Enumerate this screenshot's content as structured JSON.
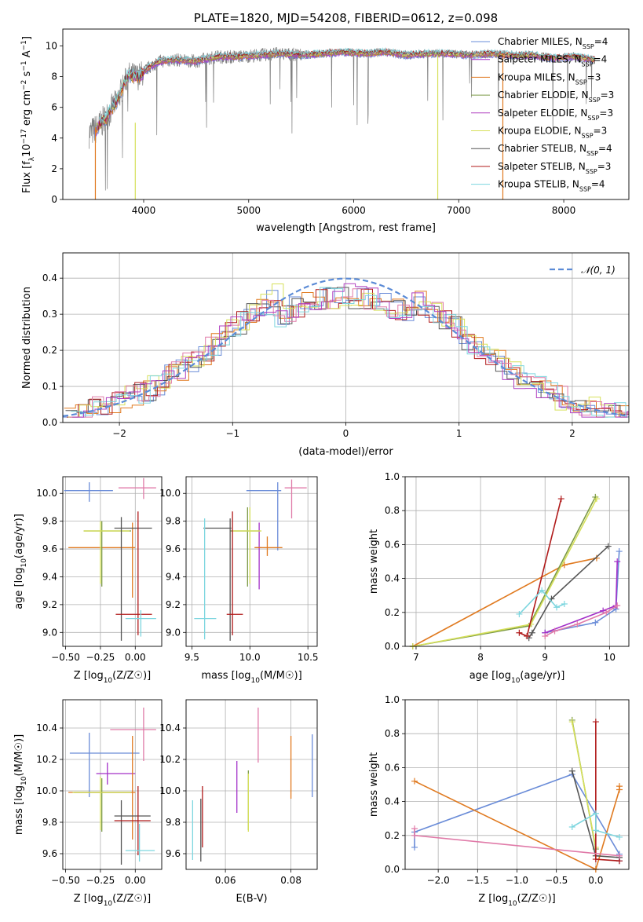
{
  "figure": {
    "title": "PLATE=1820, MJD=54208, FIBERID=0612, z=0.098"
  },
  "colors": {
    "Chabrier MILES": "#6a8cd8",
    "Salpeter MILES": "#a330c8",
    "Kroupa MILES": "#e07a20",
    "Chabrier ELODIE": "#7c9a46",
    "Salpeter ELODIE": "#b040c0",
    "Kroupa ELODIE": "#d6e05a",
    "Chabrier STELIB": "#555555",
    "Salpeter STELIB": "#b01a1a",
    "Kroupa STELIB": "#7dd6df",
    "data": "#808080",
    "normal": "#5b8bd6",
    "pink": "#e07aa8"
  },
  "chart_data": [
    {
      "id": "spectrum",
      "type": "line",
      "title": "PLATE=1820, MJD=54208, FIBERID=0612, z=0.098",
      "xlabel": "wavelength [Angstrom, rest frame]",
      "ylabel": "Flux [f_λ 10^-17 erg cm^-2 s^-1 A^-1]",
      "xlim": [
        3230,
        8620
      ],
      "ylim": [
        0,
        11.1
      ],
      "xticks": [
        4000,
        5000,
        6000,
        7000,
        8000
      ],
      "yticks": [
        0,
        2,
        4,
        6,
        8,
        10
      ],
      "grid": false,
      "legend": "right",
      "legend_entries": [
        {
          "name": "Chabrier MILES",
          "label": "Chabrier MILES, N",
          "sub": "SSP",
          "tail": "=4"
        },
        {
          "name": "Salpeter MILES",
          "label": "Salpeter MILES, N",
          "sub": "SSP",
          "tail": "=4"
        },
        {
          "name": "Kroupa MILES",
          "label": "Kroupa MILES, N",
          "sub": "SSP",
          "tail": "=3"
        },
        {
          "name": "Chabrier ELODIE",
          "label": "Chabrier ELODIE, N",
          "sub": "SSP",
          "tail": "=3"
        },
        {
          "name": "Salpeter ELODIE",
          "label": "Salpeter ELODIE, N",
          "sub": "SSP",
          "tail": "=3"
        },
        {
          "name": "Kroupa ELODIE",
          "label": "Kroupa ELODIE, N",
          "sub": "SSP",
          "tail": "=3"
        },
        {
          "name": "Chabrier STELIB",
          "label": "Chabrier STELIB, N",
          "sub": "SSP",
          "tail": "=4"
        },
        {
          "name": "Salpeter STELIB",
          "label": "Salpeter STELIB, N",
          "sub": "SSP",
          "tail": "=3"
        },
        {
          "name": "Kroupa STELIB",
          "label": "Kroupa STELIB, N",
          "sub": "SSP",
          "tail": "=4"
        }
      ],
      "continuum": {
        "x": [
          3480,
          3550,
          3650,
          3750,
          3850,
          3950,
          4050,
          4150,
          4300,
          4500,
          4700,
          4900,
          5100,
          5300,
          5500,
          5700,
          5900,
          6100,
          6300,
          6500,
          6700,
          6900,
          7100,
          7300,
          7500,
          7700,
          7900,
          8100,
          8300
        ],
        "y": [
          4.3,
          4.6,
          5.4,
          6.5,
          8.1,
          8.0,
          8.6,
          9.0,
          9.1,
          9.0,
          9.3,
          9.3,
          9.4,
          9.5,
          9.4,
          9.5,
          9.6,
          9.5,
          9.6,
          9.4,
          9.5,
          9.5,
          9.4,
          9.5,
          9.4,
          9.4,
          9.2,
          9.3,
          9.1
        ]
      }
    },
    {
      "id": "residuals",
      "type": "histogram",
      "xlabel": "(data-model)/error",
      "ylabel": "Normed distribution",
      "xlim": [
        -2.5,
        2.5
      ],
      "ylim": [
        0,
        0.47
      ],
      "xticks": [
        -2,
        -1,
        0,
        1,
        2
      ],
      "yticks": [
        0.0,
        0.1,
        0.2,
        0.3,
        0.4
      ],
      "grid": true,
      "legend": "top-right",
      "legend_entries": [
        {
          "name": "normal",
          "label": "𝒩(0, 1)"
        }
      ],
      "normal_curve": {
        "mu": 0,
        "sigma": 1
      }
    },
    {
      "id": "age-vs-Z",
      "type": "errorbar",
      "xlabel_main": "Z [log",
      "xlabel_sub": "10",
      "xlabel_tail": "(Z/Z☉)]",
      "ylabel_main": "age  [log",
      "ylabel_sub": "10",
      "ylabel_tail": "(age/yr)]",
      "xlim": [
        -0.52,
        0.19
      ],
      "ylim": [
        8.9,
        10.12
      ],
      "xticks": [
        -0.5,
        -0.25,
        0.0
      ],
      "xticklabels": [
        "−0.50",
        "−0.25",
        "0.00"
      ],
      "yticks": [
        9.0,
        9.2,
        9.4,
        9.6,
        9.8,
        10.0
      ],
      "grid": true,
      "points": [
        {
          "series": "Chabrier MILES",
          "x": -0.33,
          "y": 10.02,
          "xerr": [
            0.18,
            0.17
          ],
          "yerr": [
            0.08,
            0.06
          ]
        },
        {
          "series": "Kroupa MILES",
          "x": -0.02,
          "y": 9.61,
          "xerr": [
            0.46,
            0.02
          ],
          "yerr": [
            0.36,
            0.18
          ]
        },
        {
          "series": "Chabrier ELODIE",
          "x": -0.24,
          "y": 9.73,
          "xerr": [
            0.13,
            0.21
          ],
          "yerr": [
            0.4,
            0.07
          ]
        },
        {
          "series": "Kroupa ELODIE",
          "x": -0.25,
          "y": 9.73,
          "xerr": [
            0.12,
            0.21
          ],
          "yerr": [
            0.38,
            0.07
          ]
        },
        {
          "series": "Chabrier STELIB",
          "x": -0.1,
          "y": 9.75,
          "xerr": [
            0.05,
            0.22
          ],
          "yerr": [
            0.81,
            0.08
          ]
        },
        {
          "series": "Salpeter STELIB",
          "x": 0.02,
          "y": 9.13,
          "xerr": [
            0.16,
            0.1
          ],
          "yerr": [
            0.15,
            0.74
          ]
        },
        {
          "series": "Kroupa STELIB",
          "x": 0.04,
          "y": 9.1,
          "xerr": [
            0.11,
            0.11
          ],
          "yerr": [
            0.13,
            0.06
          ]
        },
        {
          "series": "pink",
          "x": 0.06,
          "y": 10.04,
          "xerr": [
            0.18,
            0.09
          ],
          "yerr": [
            0.08,
            0.07
          ]
        }
      ]
    },
    {
      "id": "age-vs-mass",
      "type": "errorbar",
      "xlabel_main": "mass [log",
      "xlabel_sub": "10",
      "xlabel_tail": "(M/M☉)]",
      "xlim": [
        9.45,
        10.58
      ],
      "ylim": [
        8.9,
        10.12
      ],
      "xticks": [
        9.5,
        10.0,
        10.5
      ],
      "yticks": [
        9.0,
        9.2,
        9.4,
        9.6,
        9.8,
        10.0
      ],
      "grid": true,
      "points": [
        {
          "series": "Chabrier MILES",
          "x": 10.24,
          "y": 10.02,
          "xerr": [
            0.27,
            0.03
          ],
          "yerr": [
            0.43,
            0.06
          ]
        },
        {
          "series": "pink",
          "x": 10.36,
          "y": 10.04,
          "xerr": [
            0.06,
            0.13
          ],
          "yerr": [
            0.22,
            0.06
          ]
        },
        {
          "series": "Salpeter MILES",
          "x": 10.08,
          "y": 9.61,
          "xerr": [
            0.03,
            0.02
          ],
          "yerr": [
            0.3,
            0.18
          ]
        },
        {
          "series": "Kroupa MILES",
          "x": 10.15,
          "y": 9.61,
          "xerr": [
            0.11,
            0.13
          ],
          "yerr": [
            0.06,
            0.08
          ]
        },
        {
          "series": "Chabrier ELODIE",
          "x": 9.98,
          "y": 9.73,
          "xerr": [
            0.15,
            0.1
          ],
          "yerr": [
            0.4,
            0.17
          ]
        },
        {
          "series": "Kroupa ELODIE",
          "x": 10.0,
          "y": 9.73,
          "xerr": [
            0.15,
            0.1
          ],
          "yerr": [
            0.38,
            0.17
          ]
        },
        {
          "series": "Chabrier STELIB",
          "x": 9.83,
          "y": 9.75,
          "xerr": [
            0.23,
            0.01
          ],
          "yerr": [
            0.81,
            0.07
          ]
        },
        {
          "series": "Salpeter STELIB",
          "x": 9.85,
          "y": 9.13,
          "xerr": [
            0.05,
            0.09
          ],
          "yerr": [
            0.15,
            0.74
          ]
        },
        {
          "series": "Kroupa STELIB",
          "x": 9.61,
          "y": 9.1,
          "xerr": [
            0.09,
            0.1
          ],
          "yerr": [
            0.15,
            0.72
          ]
        }
      ]
    },
    {
      "id": "weight-vs-age",
      "type": "line",
      "xlabel_main": "age  [log",
      "xlabel_sub": "10",
      "xlabel_tail": "(age/yr)]",
      "ylabel": "mass weight",
      "xlim": [
        6.83,
        10.3
      ],
      "ylim": [
        0,
        1.0
      ],
      "xticks": [
        7,
        8,
        9,
        10
      ],
      "yticks": [
        0.0,
        0.2,
        0.4,
        0.6,
        0.8,
        1.0
      ],
      "grid": true,
      "series": [
        {
          "name": "Chabrier MILES",
          "x": [
            9.0,
            9.78,
            10.1,
            10.15
          ],
          "y": [
            0.08,
            0.14,
            0.22,
            0.56
          ]
        },
        {
          "name": "Salpeter MILES",
          "x": [
            9.0,
            9.9,
            10.1,
            10.12
          ],
          "y": [
            0.08,
            0.21,
            0.24,
            0.5
          ]
        },
        {
          "name": "Kroupa MILES",
          "x": [
            6.95,
            9.3,
            9.8
          ],
          "y": [
            0.0,
            0.48,
            0.52
          ]
        },
        {
          "name": "Chabrier ELODIE",
          "x": [
            6.95,
            8.75,
            9.78
          ],
          "y": [
            0.0,
            0.12,
            0.88
          ]
        },
        {
          "name": "Kroupa ELODIE",
          "x": [
            6.95,
            8.78,
            9.8
          ],
          "y": [
            0.0,
            0.13,
            0.87
          ]
        },
        {
          "name": "Chabrier STELIB",
          "x": [
            8.75,
            8.8,
            9.1,
            9.98
          ],
          "y": [
            0.05,
            0.08,
            0.28,
            0.59
          ]
        },
        {
          "name": "Salpeter STELIB",
          "x": [
            8.6,
            8.72,
            9.25
          ],
          "y": [
            0.08,
            0.06,
            0.87
          ]
        },
        {
          "name": "Kroupa STELIB",
          "x": [
            8.6,
            8.95,
            9.18,
            9.3
          ],
          "y": [
            0.19,
            0.33,
            0.23,
            0.25
          ]
        },
        {
          "name": "pink",
          "x": [
            9.0,
            9.15,
            9.5,
            9.95,
            10.12
          ],
          "y": [
            0.06,
            0.09,
            0.13,
            0.2,
            0.24
          ]
        }
      ]
    },
    {
      "id": "mass-vs-Z",
      "type": "errorbar",
      "xlabel_main": "Z [log",
      "xlabel_sub": "10",
      "xlabel_tail": "(Z/Z☉)]",
      "ylabel_main": "mass [log",
      "ylabel_sub": "10",
      "ylabel_tail": "(M/M☉)]",
      "xlim": [
        -0.52,
        0.19
      ],
      "ylim": [
        9.5,
        10.58
      ],
      "xticks": [
        -0.5,
        -0.25,
        0.0
      ],
      "xticklabels": [
        "−0.50",
        "−0.25",
        "0.00"
      ],
      "yticks": [
        9.6,
        9.8,
        10.0,
        10.2,
        10.4
      ],
      "grid": true,
      "points": [
        {
          "series": "Chabrier MILES",
          "x": -0.33,
          "y": 10.24,
          "xerr": [
            0.14,
            0.36
          ],
          "yerr": [
            0.28,
            0.13
          ]
        },
        {
          "series": "pink",
          "x": 0.06,
          "y": 10.39,
          "xerr": [
            0.24,
            0.09
          ],
          "yerr": [
            0.2,
            0.14
          ]
        },
        {
          "series": "Salpeter MILES",
          "x": -0.2,
          "y": 10.11,
          "xerr": [
            0.08,
            0.2
          ],
          "yerr": [
            0.07,
            0.07
          ]
        },
        {
          "series": "Kroupa MILES",
          "x": -0.02,
          "y": 9.99,
          "xerr": [
            0.46,
            0.02
          ],
          "yerr": [
            0.3,
            0.36
          ]
        },
        {
          "series": "Chabrier ELODIE",
          "x": -0.24,
          "y": 9.99,
          "xerr": [
            0.2,
            0.21
          ],
          "yerr": [
            0.25,
            0.09
          ]
        },
        {
          "series": "Kroupa ELODIE",
          "x": -0.25,
          "y": 9.99,
          "xerr": [
            0.2,
            0.22
          ],
          "yerr": [
            0.24,
            0.1
          ]
        },
        {
          "series": "Chabrier STELIB",
          "x": -0.1,
          "y": 9.84,
          "xerr": [
            0.05,
            0.21
          ],
          "yerr": [
            0.31,
            0.1
          ]
        },
        {
          "series": "Salpeter STELIB",
          "x": 0.02,
          "y": 9.81,
          "xerr": [
            0.17,
            0.09
          ],
          "yerr": [
            0.22,
            0.22
          ]
        },
        {
          "series": "Kroupa STELIB",
          "x": 0.03,
          "y": 9.62,
          "xerr": [
            0.1,
            0.11
          ],
          "yerr": [
            0.07,
            0.17
          ]
        }
      ]
    },
    {
      "id": "mass-vs-ebv",
      "type": "errorbar",
      "xlabel": "E(B-V)",
      "xlim": [
        0.048,
        0.088
      ],
      "ylim": [
        9.5,
        10.58
      ],
      "xticks": [
        0.06,
        0.08
      ],
      "yticks": [
        9.6,
        9.8,
        10.0,
        10.2,
        10.4
      ],
      "grid": true,
      "points": [
        {
          "series": "Chabrier MILES",
          "x": 0.0865,
          "y": 10.16,
          "xerr": [
            0,
            0
          ],
          "yerr": [
            0.2,
            0.2
          ]
        },
        {
          "series": "Kroupa MILES",
          "x": 0.08,
          "y": 10.15,
          "xerr": [
            0,
            0
          ],
          "yerr": [
            0.2,
            0.2
          ]
        },
        {
          "series": "pink",
          "x": 0.07,
          "y": 10.35,
          "xerr": [
            0,
            0
          ],
          "yerr": [
            0.17,
            0.18
          ]
        },
        {
          "series": "Chabrier ELODIE",
          "x": 0.067,
          "y": 9.93,
          "xerr": [
            0,
            0
          ],
          "yerr": [
            0.18,
            0.2
          ]
        },
        {
          "series": "Kroupa ELODIE",
          "x": 0.067,
          "y": 9.93,
          "xerr": [
            0,
            0
          ],
          "yerr": [
            0.19,
            0.18
          ]
        },
        {
          "series": "Salpeter MILES",
          "x": 0.0635,
          "y": 10.0,
          "xerr": [
            0,
            0
          ],
          "yerr": [
            0.14,
            0.19
          ]
        },
        {
          "series": "Chabrier STELIB",
          "x": 0.0525,
          "y": 9.75,
          "xerr": [
            0,
            0
          ],
          "yerr": [
            0.2,
            0.2
          ]
        },
        {
          "series": "Salpeter STELIB",
          "x": 0.053,
          "y": 9.84,
          "xerr": [
            0,
            0
          ],
          "yerr": [
            0.2,
            0.19
          ]
        },
        {
          "series": "Kroupa STELIB",
          "x": 0.05,
          "y": 9.76,
          "xerr": [
            0,
            0
          ],
          "yerr": [
            0.2,
            0.18
          ]
        }
      ]
    },
    {
      "id": "weight-vs-Z",
      "type": "line",
      "xlabel_main": "Z [log",
      "xlabel_sub": "10",
      "xlabel_tail": "(Z/Z☉)]",
      "ylabel": "mass weight",
      "xlim": [
        -2.42,
        0.42
      ],
      "ylim": [
        0,
        1.0
      ],
      "xticks": [
        -2.0,
        -1.5,
        -1.0,
        -0.5,
        0.0
      ],
      "xticklabels": [
        "−2.0",
        "−1.5",
        "−1.0",
        "−0.5",
        "0.0"
      ],
      "yticks": [
        0.0,
        0.2,
        0.4,
        0.6,
        0.8,
        1.0
      ],
      "grid": true,
      "series": [
        {
          "name": "Chabrier MILES",
          "x": [
            -2.3,
            -2.3,
            -0.3,
            0.3,
            0.3
          ],
          "y": [
            0.13,
            0.22,
            0.56,
            0.09,
            0.05
          ]
        },
        {
          "name": "Kroupa MILES",
          "x": [
            -2.3,
            0.0,
            0.3,
            0.3
          ],
          "y": [
            0.52,
            0.0,
            0.47,
            0.49
          ]
        },
        {
          "name": "Chabrier ELODIE",
          "x": [
            -0.3,
            0.0
          ],
          "y": [
            0.88,
            0.12
          ]
        },
        {
          "name": "Kroupa ELODIE",
          "x": [
            -0.3,
            0.0
          ],
          "y": [
            0.87,
            0.13
          ]
        },
        {
          "name": "Chabrier STELIB",
          "x": [
            -0.3,
            0.0,
            0.3
          ],
          "y": [
            0.58,
            0.08,
            0.07
          ]
        },
        {
          "name": "Salpeter STELIB",
          "x": [
            0.0,
            0.0,
            0.3
          ],
          "y": [
            0.87,
            0.06,
            0.05
          ]
        },
        {
          "name": "Kroupa STELIB",
          "x": [
            -0.3,
            0.0,
            0.0,
            0.3
          ],
          "y": [
            0.25,
            0.33,
            0.23,
            0.19
          ]
        },
        {
          "name": "pink",
          "x": [
            -2.3,
            -2.3,
            0.3
          ],
          "y": [
            0.24,
            0.2,
            0.08
          ]
        }
      ]
    }
  ]
}
